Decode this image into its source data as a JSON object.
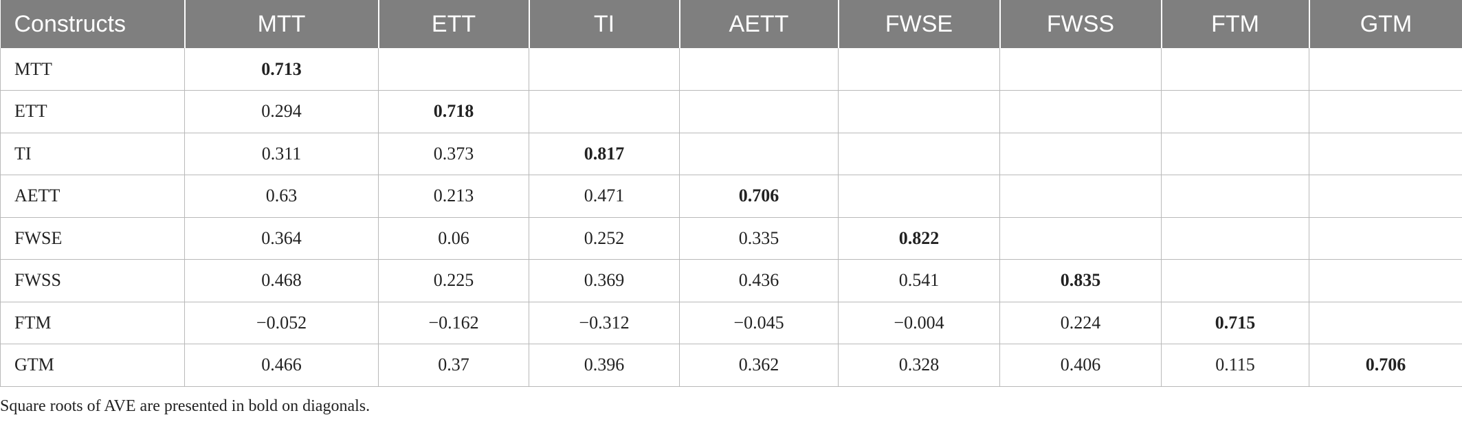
{
  "table": {
    "headers": [
      "Constructs",
      "MTT",
      "ETT",
      "TI",
      "AETT",
      "FWSE",
      "FWSS",
      "FTM",
      "GTM"
    ],
    "rows": [
      {
        "label": "MTT",
        "cells": [
          "0.713",
          "",
          "",
          "",
          "",
          "",
          "",
          ""
        ]
      },
      {
        "label": "ETT",
        "cells": [
          "0.294",
          "0.718",
          "",
          "",
          "",
          "",
          "",
          ""
        ]
      },
      {
        "label": "TI",
        "cells": [
          "0.311",
          "0.373",
          "0.817",
          "",
          "",
          "",
          "",
          ""
        ]
      },
      {
        "label": "AETT",
        "cells": [
          "0.63",
          "0.213",
          "0.471",
          "0.706",
          "",
          "",
          "",
          ""
        ]
      },
      {
        "label": "FWSE",
        "cells": [
          "0.364",
          "0.06",
          "0.252",
          "0.335",
          "0.822",
          "",
          "",
          ""
        ]
      },
      {
        "label": "FWSS",
        "cells": [
          "0.468",
          "0.225",
          "0.369",
          "0.436",
          "0.541",
          "0.835",
          "",
          ""
        ]
      },
      {
        "label": "FTM",
        "cells": [
          "−0.052",
          "−0.162",
          "−0.312",
          "−0.045",
          "−0.004",
          "0.224",
          "0.715",
          ""
        ]
      },
      {
        "label": "GTM",
        "cells": [
          "0.466",
          "0.37",
          "0.396",
          "0.362",
          "0.328",
          "0.406",
          "0.115",
          "0.706"
        ]
      }
    ]
  },
  "footnote": "Square roots of AVE are presented in bold on diagonals.",
  "colors": {
    "header_background": "#7f7f7f",
    "header_text": "#ffffff",
    "grid_lines": "#b9b9b9",
    "body_text": "#222222"
  }
}
